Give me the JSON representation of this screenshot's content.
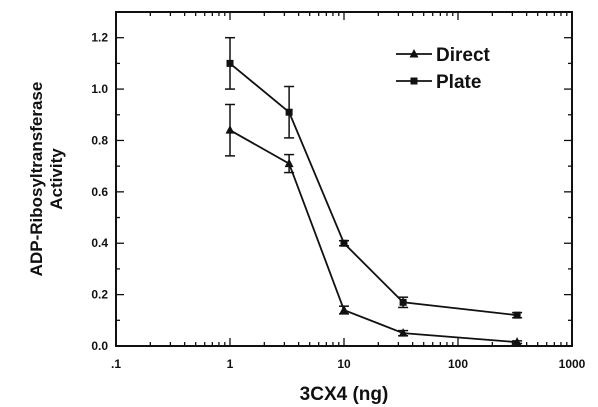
{
  "chart_data": {
    "type": "line",
    "xlabel": "3CX4 (ng)",
    "ylabel_line1": "ADP-Ribosyltransferase",
    "ylabel_line2": "Activity",
    "x_scale": "log",
    "xlim": [
      0.1,
      1000
    ],
    "ylim": [
      0.0,
      1.3
    ],
    "x_ticks": [
      0.1,
      1,
      10,
      100,
      1000
    ],
    "x_tick_labels": [
      ".1",
      "1",
      "10",
      "100",
      "1000"
    ],
    "y_ticks": [
      0.0,
      0.2,
      0.4,
      0.6,
      0.8,
      1.0,
      1.2
    ],
    "y_tick_labels": [
      "0.0",
      "0.2",
      "0.4",
      "0.6",
      "0.8",
      "1.0",
      "1.2"
    ],
    "grid": false,
    "legend_position": "top-right",
    "series": [
      {
        "name": "Direct",
        "marker": "triangle",
        "x": [
          1,
          3.3,
          10,
          33,
          330
        ],
        "y": [
          0.84,
          0.71,
          0.14,
          0.05,
          0.015
        ],
        "err": [
          0.1,
          0.035,
          0.015,
          0.01,
          0.005
        ]
      },
      {
        "name": "Plate",
        "marker": "square",
        "x": [
          1,
          3.3,
          10,
          33,
          330
        ],
        "y": [
          1.1,
          0.91,
          0.4,
          0.17,
          0.12
        ],
        "err": [
          0.1,
          0.1,
          0.01,
          0.02,
          0.01
        ]
      }
    ]
  }
}
